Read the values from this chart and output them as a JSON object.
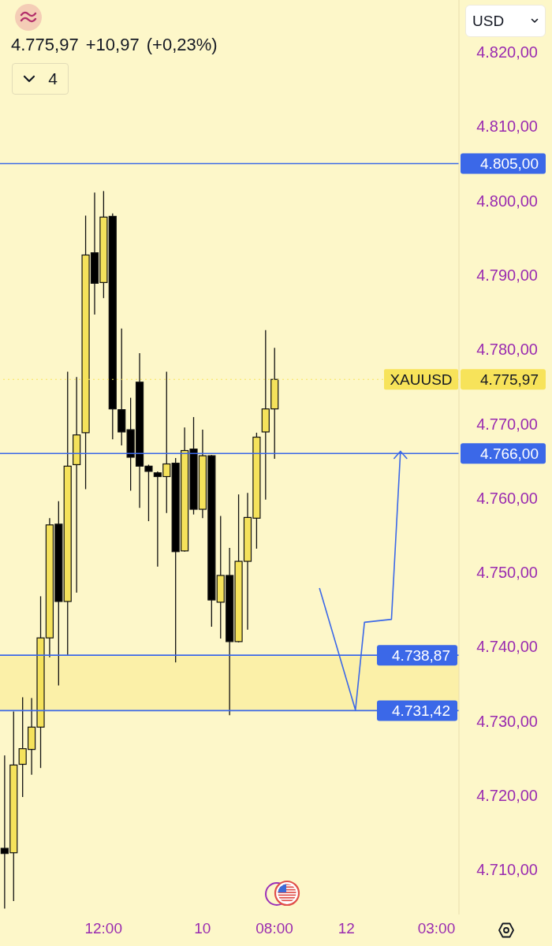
{
  "chart_data": {
    "type": "candlestick",
    "title": "4.775,97 +10,97 (+0,23%)",
    "categories": [
      null,
      null,
      null,
      null,
      null,
      null,
      null,
      null,
      null,
      null,
      null,
      "12:00",
      null,
      null,
      null,
      null,
      null,
      null,
      null,
      null,
      null,
      null,
      "10",
      null,
      null,
      null,
      null,
      null,
      null,
      null,
      "08:00",
      null,
      null,
      null,
      null,
      null,
      null,
      null,
      "12",
      null,
      null,
      null,
      null,
      null,
      null,
      null,
      null,
      null,
      "03:00",
      null,
      null
    ],
    "ohlc": [
      [
        4712.9,
        4725.4,
        4704.8,
        4712.2
      ],
      [
        4712.3,
        4731.3,
        4705.8,
        4724.1
      ],
      [
        4724.2,
        4733.2,
        4719.8,
        4726.3
      ],
      [
        4726.2,
        4733.1,
        4722.8,
        4729.2
      ],
      [
        4729.2,
        4746.8,
        4723.7,
        4741.2
      ],
      [
        4741.2,
        4757.3,
        4738.6,
        4756.4
      ],
      [
        4756.5,
        4759.6,
        4734.8,
        4746.1
      ],
      [
        4746.1,
        4777.0,
        4738.8,
        4764.3
      ],
      [
        4764.5,
        4776.3,
        4747.3,
        4768.5
      ],
      [
        4768.8,
        4798.0,
        4761.2,
        4792.7
      ],
      [
        4793.0,
        4801.1,
        4784.7,
        4788.9
      ],
      [
        4789.0,
        4801.3,
        4786.9,
        4797.8
      ],
      [
        4797.9,
        4798.3,
        4767.9,
        4772.0
      ],
      [
        4771.9,
        4782.8,
        4767.1,
        4768.9
      ],
      [
        4769.2,
        4773.5,
        4761.0,
        4765.5
      ],
      [
        4775.6,
        4779.5,
        4758.7,
        4764.3
      ],
      [
        4764.3,
        4764.5,
        4756.9,
        4763.6
      ],
      [
        4763.4,
        4763.6,
        4750.8,
        4762.9
      ],
      [
        4762.9,
        4777.0,
        4758.0,
        4764.6
      ],
      [
        4764.7,
        4765.4,
        4737.9,
        4752.8
      ],
      [
        4752.9,
        4769.5,
        4752.8,
        4766.4
      ],
      [
        4766.6,
        4770.9,
        4757.8,
        4758.5
      ],
      [
        4758.5,
        4769.2,
        4757.3,
        4765.7
      ],
      [
        4765.7,
        4765.8,
        4742.7,
        4746.3
      ],
      [
        4746.0,
        4757.6,
        4741.1,
        4749.6
      ],
      [
        4749.6,
        4753.3,
        4730.8,
        4740.7
      ],
      [
        4740.7,
        4760.5,
        4740.6,
        4751.5
      ],
      [
        4751.5,
        4760.7,
        4742.3,
        4757.4
      ],
      [
        4757.3,
        4768.8,
        4753.2,
        4768.2
      ],
      [
        4768.9,
        4782.6,
        4759.8,
        4772.0
      ],
      [
        4772.0,
        4780.2,
        4765.3,
        4775.97
      ],
      null,
      null,
      null,
      null,
      null,
      null,
      null,
      null,
      null,
      null,
      null,
      null,
      null,
      null,
      null,
      null,
      null,
      null,
      null,
      null
    ],
    "colors": [
      "#000000",
      "#f5e25b",
      "#f5e25b",
      "#f5e25b",
      "#f5e25b",
      "#f5e25b",
      "#000000",
      "#f5e25b",
      "#f5e25b",
      "#f5e25b",
      "#000000",
      "#f5e25b",
      "#000000",
      "#000000",
      "#000000",
      "#000000",
      "#000000",
      "#000000",
      "#f5e25b",
      "#000000",
      "#f5e25b",
      "#000000",
      "#f5e25b",
      "#000000",
      "#f5e25b",
      "#000000",
      "#f5e25b",
      "#f5e25b",
      "#f5e25b",
      "#f5e25b",
      "#f5e25b",
      null,
      null,
      null,
      null,
      null,
      null,
      null,
      null,
      null,
      null,
      null,
      null,
      null,
      null,
      null,
      null,
      null,
      null,
      null,
      null
    ],
    "series": [
      {
        "type": "line",
        "color": "#3b68e8",
        "values": [
          null,
          null,
          null,
          null,
          null,
          null,
          null,
          null,
          null,
          null,
          null,
          null,
          null,
          null,
          null,
          null,
          null,
          null,
          null,
          null,
          null,
          null,
          null,
          null,
          null,
          null,
          null,
          null,
          null,
          null,
          null,
          null,
          null,
          null,
          null,
          4747.9,
          null,
          null,
          null,
          4731.5,
          4743.3,
          null,
          null,
          4743.7,
          4766.3,
          null,
          null,
          null,
          null,
          null,
          null
        ]
      }
    ],
    "ylim": [
      4704,
      4827
    ],
    "yticks": [
      {
        "value": 4710,
        "label": "4.710,00"
      },
      {
        "value": 4720,
        "label": "4.720,00"
      },
      {
        "value": 4730,
        "label": "4.730,00"
      },
      {
        "value": 4740,
        "label": "4.740,00"
      },
      {
        "value": 4750,
        "label": "4.750,00"
      },
      {
        "value": 4760,
        "label": "4.760,00"
      },
      {
        "value": 4770,
        "label": "4.770,00"
      },
      {
        "value": 4780,
        "label": "4.780,00"
      },
      {
        "value": 4790,
        "label": "4.790,00"
      },
      {
        "value": 4800,
        "label": "4.800,00"
      },
      {
        "value": 4810,
        "label": "4.810,00"
      },
      {
        "value": 4820,
        "label": "4.820,00"
      }
    ],
    "ref_lines": [
      {
        "axis": "y",
        "value": 4805,
        "label": "4.805,00",
        "color": "#3b68e8"
      },
      {
        "axis": "y",
        "value": 4766,
        "label": "4.766,00",
        "color": "#3b68e8"
      },
      {
        "axis": "y",
        "value": 4775.97,
        "label": "4.775,97",
        "color": "#f7e35a",
        "line_style": "dotted"
      },
      {
        "axis": "y",
        "value": 4738.87,
        "label": "4.738,87",
        "color": "#3b68e8"
      },
      {
        "axis": "y",
        "value": 4731.42,
        "label": "4.731,42",
        "color": "#3b68e8"
      }
    ],
    "bands": [
      {
        "axis": "y",
        "from": 4731.42,
        "to": 4738.87,
        "color": "#fbf0a8"
      }
    ],
    "annotations": [
      {
        "text": "XAUUSD",
        "y": 4775.97
      },
      "USD",
      "4"
    ]
  }
}
